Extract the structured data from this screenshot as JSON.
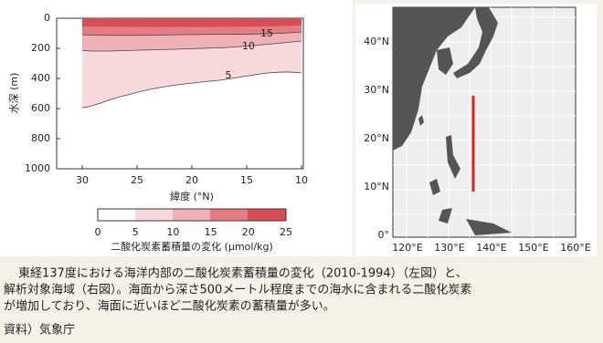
{
  "left_panel": {
    "y_axis_title": "水深 (m)",
    "y_ticks": [
      0,
      200,
      400,
      600,
      800,
      1000
    ],
    "x_axis_title": "緯度 (°N)",
    "x_ticks": [
      30,
      25,
      20,
      15,
      10
    ],
    "contour_labels": [
      15,
      10,
      5
    ],
    "colorbar": {
      "ticks": [
        0,
        5,
        10,
        15,
        20,
        25
      ],
      "title": "二酸化炭素蓄積量の変化 (μmol/kg)"
    }
  },
  "right_panel": {
    "lat_labels": [
      "40°N",
      "30°N",
      "20°N",
      "10°N",
      "0°"
    ],
    "lon_labels": [
      "120°E",
      "130°E",
      "140°E",
      "150°E",
      "160°E"
    ]
  },
  "caption": {
    "lines": [
      "東経137度における海洋内部の二酸化炭素蓄積量の変化（2010-1994）（左図）と、",
      "解析対象海域（右図）。海面から深さ500メートル程度までの海水に含まれる二酸化炭素",
      "が増加しており、海面に近いほど二酸化炭素の蓄積量が多い。"
    ]
  },
  "source": "資料）気象庁"
}
